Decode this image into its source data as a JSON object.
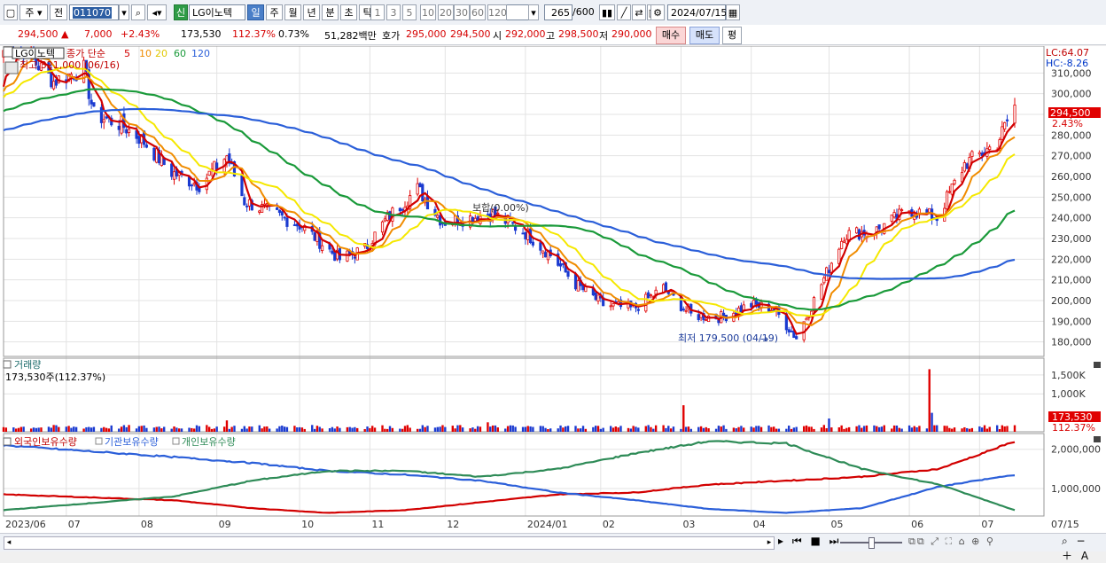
{
  "toolbar": {
    "period_short": "주",
    "prev_label": "전",
    "stock_code": "011070",
    "stock_name_badge": "신",
    "stock_name": "LG이노텍",
    "tabs": [
      "일",
      "주",
      "월",
      "년",
      "분",
      "초",
      "틱"
    ],
    "selected_tab": "일",
    "minute_buttons": [
      "1",
      "3",
      "5",
      "10",
      "20",
      "30",
      "60",
      "120"
    ],
    "count_value": "265",
    "count_total": "/600",
    "date_value": "2024/07/15"
  },
  "quote": {
    "price": "294,500",
    "change_arrow": "▲",
    "change": "7,000",
    "change_pct": "+2.43%",
    "volume": "173,530",
    "volume_ratio": "112.37%",
    "turnover": "0.73%",
    "amount": "51,282백만",
    "bid_label": "호가",
    "bid1": "295,000",
    "bid2": "294,500",
    "open_label": "시",
    "open": "292,000",
    "high_label": "고",
    "high": "298,500",
    "low_label": "저",
    "low": "290,000",
    "buy_label": "매수",
    "sell_label": "매도",
    "flat_label": "평"
  },
  "price_panel": {
    "name": "LG이노텍",
    "legend_label": "종가 단순",
    "ma_periods": [
      "5",
      "10",
      "20",
      "60",
      "120"
    ],
    "ma_colors": [
      "#d20000",
      "#f08c00",
      "#f5e800",
      "#1a9a3a",
      "#2b5fd9"
    ],
    "high_note": "최고 321,000 (06/16)",
    "low_note": "최저 179,500 (04/19)",
    "flat_note": "보합(0.00%)",
    "lc": "LC:64.07",
    "hc": "HC:-8.26",
    "last_price_label": "294,500",
    "last_pct_label": "2.43%",
    "y_ticks": [
      "310,000",
      "300,000",
      "290,000",
      "280,000",
      "270,000",
      "260,000",
      "250,000",
      "240,000",
      "230,000",
      "220,000",
      "210,000",
      "200,000",
      "190,000",
      "180,000"
    ]
  },
  "volume_panel": {
    "title": "거래량",
    "info": "173,530주(112.37%)",
    "y_ticks": [
      "1,500K",
      "1,000K"
    ],
    "last_label": "173,530",
    "last_pct": "112.37%"
  },
  "holding_panel": {
    "legend": [
      "외국인보유수량",
      "기관보유수량",
      "개인보유수량"
    ],
    "colors": [
      "#d20000",
      "#2b5fd9",
      "#2e8b57"
    ],
    "y_ticks": [
      "2,000,000",
      "1,000,000"
    ]
  },
  "x_axis": {
    "labels": [
      "2023/06",
      "07",
      "08",
      "09",
      "10",
      "11",
      "12",
      "2024/01",
      "02",
      "03",
      "04",
      "05",
      "06",
      "07"
    ],
    "right_label": "07/15"
  },
  "chart_data": {
    "type": "line",
    "title": "LG이노텍",
    "series": [
      {
        "name": "종가 단순 5",
        "period": 5
      },
      {
        "name": "종가 단순 10",
        "period": 10
      },
      {
        "name": "종가 단순 20",
        "period": 20
      },
      {
        "name": "종가 단순 60",
        "period": 60
      },
      {
        "name": "종가 단순 120",
        "period": 120
      }
    ],
    "ylim": [
      173000,
      323000
    ],
    "price_anchors": [
      [
        "2023-06-16",
        321000
      ],
      [
        "2023-06-28",
        306000
      ],
      [
        "2023-07-10",
        312000
      ],
      [
        "2023-07-14",
        290000
      ],
      [
        "2023-07-25",
        285000
      ],
      [
        "2023-08-02",
        278000
      ],
      [
        "2023-08-14",
        262000
      ],
      [
        "2023-08-25",
        256000
      ],
      [
        "2023-09-05",
        270000
      ],
      [
        "2023-09-12",
        248000
      ],
      [
        "2023-09-20",
        244000
      ],
      [
        "2023-10-05",
        236000
      ],
      [
        "2023-10-20",
        220000
      ],
      [
        "2023-10-30",
        225000
      ],
      [
        "2023-11-08",
        240000
      ],
      [
        "2023-11-20",
        254000
      ],
      [
        "2023-11-30",
        238000
      ],
      [
        "2023-12-11",
        240000
      ],
      [
        "2023-12-20",
        242000
      ],
      [
        "2024-01-03",
        232000
      ],
      [
        "2024-01-12",
        222000
      ],
      [
        "2024-01-22",
        208000
      ],
      [
        "2024-02-02",
        198000
      ],
      [
        "2024-02-14",
        196000
      ],
      [
        "2024-02-26",
        206000
      ],
      [
        "2024-03-08",
        193000
      ],
      [
        "2024-03-20",
        192000
      ],
      [
        "2024-04-01",
        198000
      ],
      [
        "2024-04-10",
        196000
      ],
      [
        "2024-04-19",
        182000
      ],
      [
        "2024-04-26",
        200000
      ],
      [
        "2024-05-08",
        232000
      ],
      [
        "2024-05-21",
        234000
      ],
      [
        "2024-06-03",
        244000
      ],
      [
        "2024-06-14",
        240000
      ],
      [
        "2024-06-25",
        266000
      ],
      [
        "2024-07-08",
        276000
      ],
      [
        "2024-07-15",
        294500
      ]
    ],
    "volume_anchors_k": [
      [
        "2023-09-05",
        300
      ],
      [
        "2023-12-18",
        250
      ],
      [
        "2024-03-05",
        700
      ],
      [
        "2024-05-02",
        350
      ],
      [
        "2024-06-11",
        1650
      ],
      [
        "2024-06-12",
        500
      ],
      [
        "2024-07-15",
        173.5
      ]
    ],
    "holdings": [
      {
        "name": "외국인보유수량",
        "values": [
          [
            "2023-06",
            850000
          ],
          [
            "2023-08",
            700000
          ],
          [
            "2023-09",
            500000
          ],
          [
            "2023-10",
            380000
          ],
          [
            "2023-11",
            450000
          ],
          [
            "2023-12",
            650000
          ],
          [
            "2024-01",
            850000
          ],
          [
            "2024-02",
            900000
          ],
          [
            "2024-03",
            1100000
          ],
          [
            "2024-04",
            1200000
          ],
          [
            "2024-05",
            1300000
          ],
          [
            "2024-06",
            1500000
          ],
          [
            "2024-07",
            2200000
          ]
        ]
      },
      {
        "name": "기관보유수량",
        "values": [
          [
            "2023-06",
            2100000
          ],
          [
            "2023-08",
            1800000
          ],
          [
            "2023-09",
            1650000
          ],
          [
            "2023-10",
            1450000
          ],
          [
            "2023-11",
            1350000
          ],
          [
            "2023-12",
            1200000
          ],
          [
            "2024-01",
            900000
          ],
          [
            "2024-02",
            700000
          ],
          [
            "2024-03",
            480000
          ],
          [
            "2024-04",
            380000
          ],
          [
            "2024-05",
            500000
          ],
          [
            "2024-06",
            1050000
          ],
          [
            "2024-07",
            1350000
          ]
        ]
      },
      {
        "name": "개인보유수량",
        "values": [
          [
            "2023-06",
            450000
          ],
          [
            "2023-08",
            800000
          ],
          [
            "2023-09",
            1200000
          ],
          [
            "2023-10",
            1450000
          ],
          [
            "2023-11",
            1450000
          ],
          [
            "2023-12",
            1300000
          ],
          [
            "2024-01",
            1500000
          ],
          [
            "2024-02",
            1900000
          ],
          [
            "2024-03",
            2200000
          ],
          [
            "2024-04",
            2150000
          ],
          [
            "2024-05",
            1500000
          ],
          [
            "2024-06",
            1100000
          ],
          [
            "2024-07",
            450000
          ]
        ]
      }
    ],
    "holding_ylim": [
      300000,
      2400000
    ]
  }
}
